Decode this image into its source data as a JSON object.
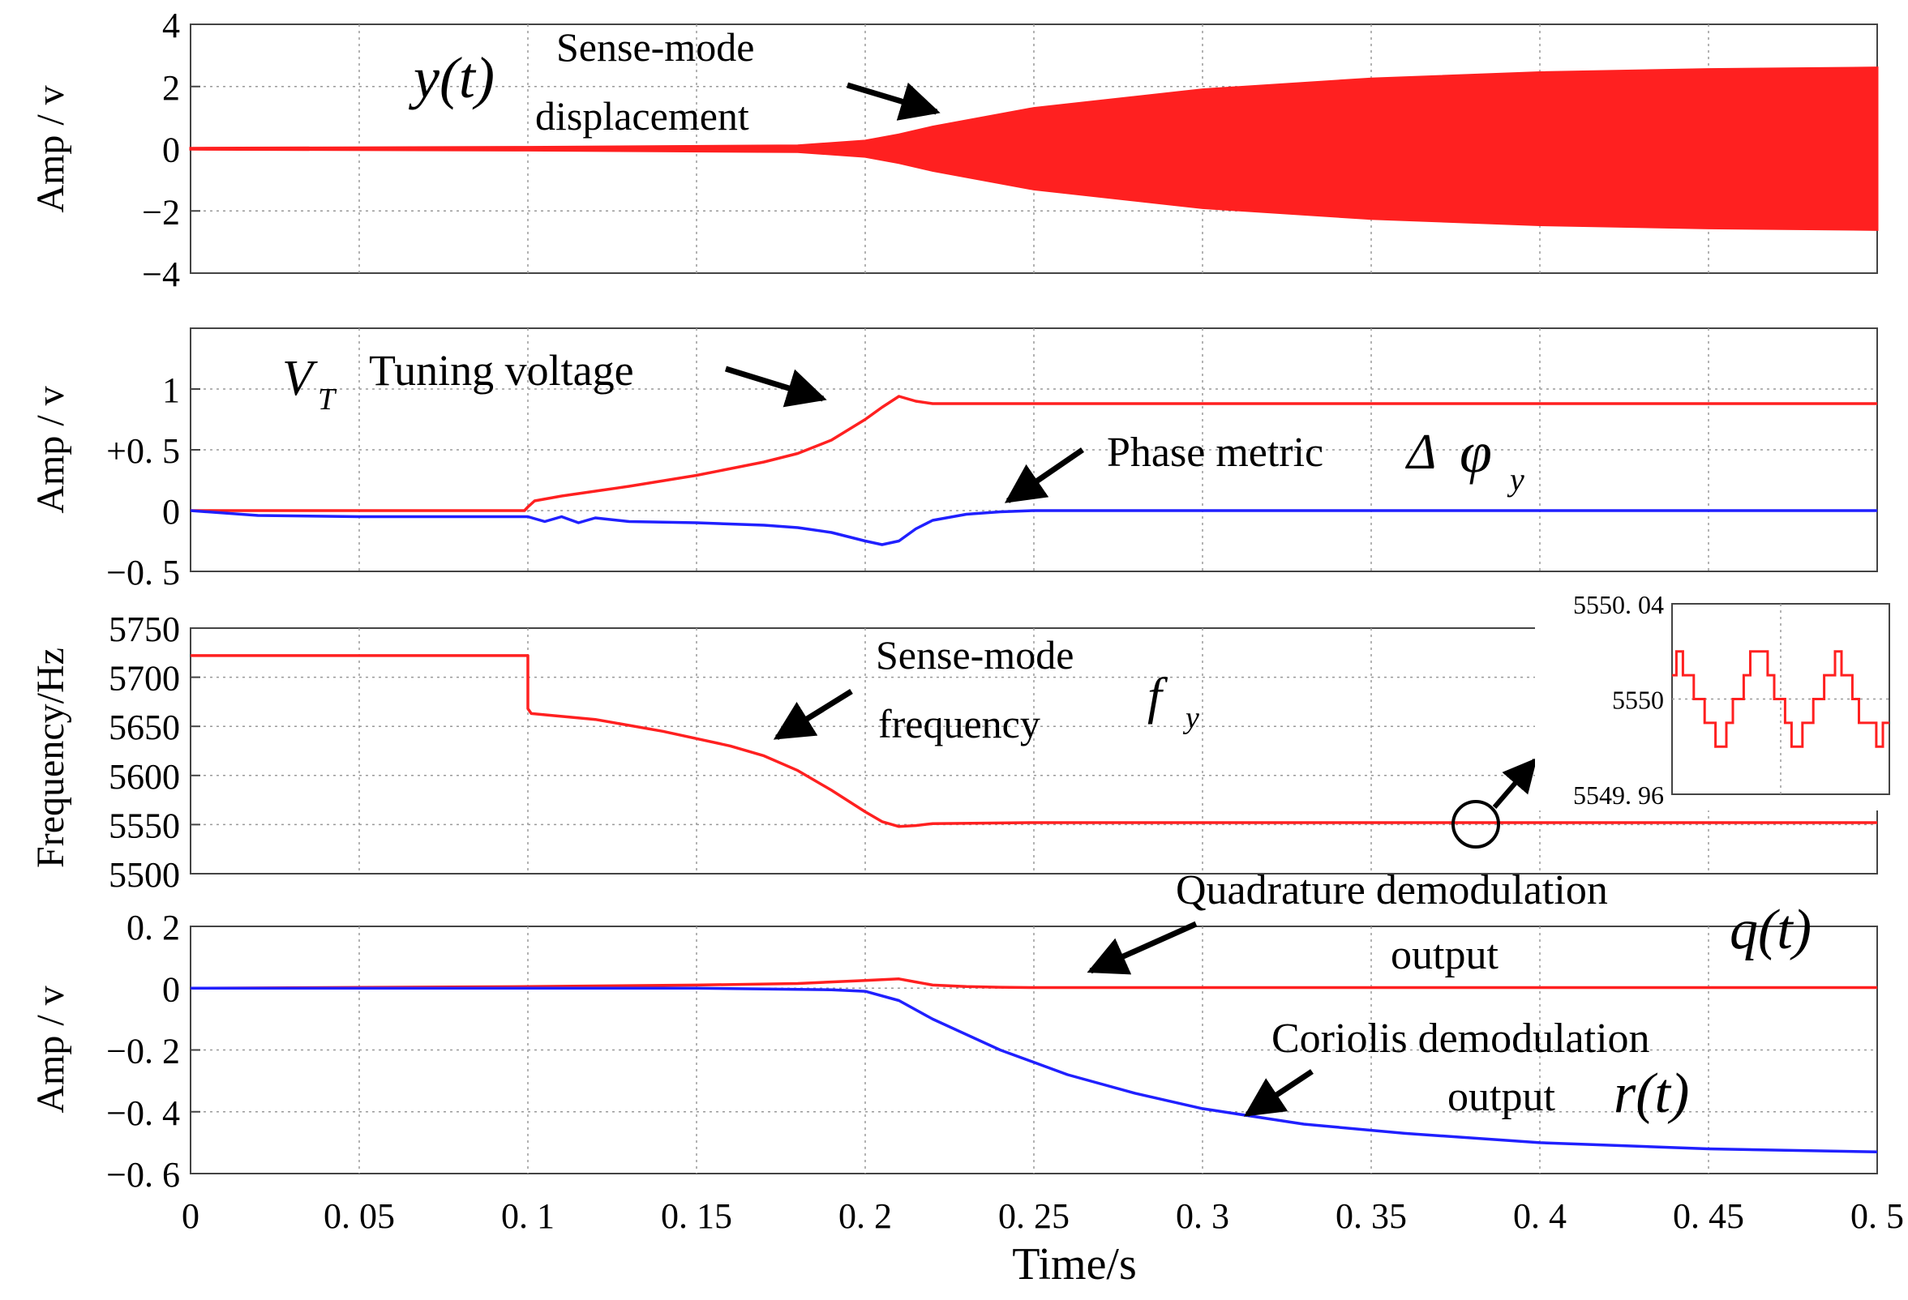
{
  "chart_data": [
    {
      "type": "line",
      "ylabel": "Amp / v",
      "ylim": [
        -4,
        4
      ],
      "yticks": [
        "4",
        "2",
        "0",
        "−2",
        "−4"
      ],
      "xlim": [
        0,
        0.5
      ],
      "series": [
        {
          "name": "Sense-mode displacement",
          "color": "#ff2020",
          "kind": "envelope",
          "x": [
            0,
            0.1,
            0.18,
            0.2,
            0.21,
            0.22,
            0.25,
            0.3,
            0.35,
            0.4,
            0.45,
            0.5
          ],
          "upper": [
            0.02,
            0.05,
            0.1,
            0.25,
            0.45,
            0.7,
            1.3,
            1.9,
            2.25,
            2.45,
            2.55,
            2.6
          ],
          "lower": [
            -0.02,
            -0.05,
            -0.1,
            -0.25,
            -0.45,
            -0.7,
            -1.3,
            -1.9,
            -2.25,
            -2.45,
            -2.55,
            -2.6
          ]
        }
      ],
      "annotations": {
        "symbol": "y(t)",
        "label_line1": "Sense-mode",
        "label_line2": "displacement"
      }
    },
    {
      "type": "line",
      "ylabel": "Amp / v",
      "ylim": [
        -0.5,
        1.5
      ],
      "yticks": [
        "1",
        "+0. 5",
        "0",
        "−0. 5"
      ],
      "xlim": [
        0,
        0.5
      ],
      "series": [
        {
          "name": "Tuning voltage",
          "color": "#ff2020",
          "x": [
            0,
            0.099,
            0.1,
            0.102,
            0.11,
            0.12,
            0.13,
            0.15,
            0.17,
            0.18,
            0.19,
            0.2,
            0.205,
            0.21,
            0.215,
            0.22,
            0.5
          ],
          "y": [
            0,
            0,
            0.03,
            0.08,
            0.12,
            0.16,
            0.2,
            0.29,
            0.4,
            0.47,
            0.58,
            0.75,
            0.85,
            0.94,
            0.9,
            0.88,
            0.88
          ]
        },
        {
          "name": "Phase metric",
          "color": "#2020ff",
          "x": [
            0,
            0.01,
            0.02,
            0.05,
            0.1,
            0.105,
            0.11,
            0.115,
            0.12,
            0.13,
            0.15,
            0.17,
            0.18,
            0.19,
            0.2,
            0.205,
            0.21,
            0.215,
            0.22,
            0.23,
            0.24,
            0.25,
            0.5
          ],
          "y": [
            0,
            -0.02,
            -0.04,
            -0.05,
            -0.05,
            -0.09,
            -0.05,
            -0.1,
            -0.06,
            -0.09,
            -0.1,
            -0.12,
            -0.14,
            -0.18,
            -0.25,
            -0.28,
            -0.25,
            -0.15,
            -0.08,
            -0.03,
            -0.01,
            0,
            0
          ]
        }
      ],
      "annotations": {
        "vt_symbol": "V",
        "vt_sub": "T",
        "vt_label": "Tuning voltage",
        "phase_label": "Phase  metric",
        "phase_delta": "Δ",
        "phase_phi": "φ",
        "phase_sub": "y"
      }
    },
    {
      "type": "line",
      "ylabel": "Frequency/Hz",
      "ylim": [
        5500,
        5750
      ],
      "yticks": [
        "5750",
        "5700",
        "5650",
        "5600",
        "5550",
        "5500"
      ],
      "xlim": [
        0,
        0.5
      ],
      "series": [
        {
          "name": "Sense-mode frequency",
          "color": "#ff2020",
          "x": [
            0,
            0.1,
            0.1,
            0.101,
            0.12,
            0.14,
            0.16,
            0.17,
            0.18,
            0.19,
            0.2,
            0.205,
            0.21,
            0.215,
            0.22,
            0.25,
            0.5
          ],
          "y": [
            5722,
            5722,
            5668,
            5663,
            5657,
            5645,
            5630,
            5620,
            5605,
            5585,
            5563,
            5553,
            5548,
            5549,
            5551,
            5552,
            5552
          ]
        }
      ],
      "annotations": {
        "label_line1": "Sense-mode",
        "label_line2": "frequency",
        "symbol": "f",
        "symbol_sub": "y"
      },
      "inset": {
        "yticks": [
          "5550. 04",
          "5550",
          "5549. 96"
        ],
        "ylim": [
          5549.96,
          5550.04
        ],
        "x": [
          0,
          0.02,
          0.02,
          0.05,
          0.05,
          0.1,
          0.1,
          0.15,
          0.15,
          0.2,
          0.2,
          0.25,
          0.25,
          0.28,
          0.28,
          0.33,
          0.33,
          0.36,
          0.36,
          0.44,
          0.44,
          0.47,
          0.47,
          0.52,
          0.52,
          0.55,
          0.55,
          0.6,
          0.6,
          0.65,
          0.65,
          0.7,
          0.7,
          0.75,
          0.75,
          0.78,
          0.78,
          0.83,
          0.83,
          0.86,
          0.86,
          0.94,
          0.94,
          0.97,
          0.97,
          1.0
        ],
        "y": [
          5550.01,
          5550.01,
          5550.02,
          5550.02,
          5550.01,
          5550.01,
          5550.0,
          5550.0,
          5549.99,
          5549.99,
          5549.98,
          5549.98,
          5549.99,
          5549.99,
          5550.0,
          5550.0,
          5550.01,
          5550.01,
          5550.02,
          5550.02,
          5550.01,
          5550.01,
          5550.0,
          5550.0,
          5549.99,
          5549.99,
          5549.98,
          5549.98,
          5549.99,
          5549.99,
          5550.0,
          5550.0,
          5550.01,
          5550.01,
          5550.02,
          5550.02,
          5550.01,
          5550.01,
          5550.0,
          5550.0,
          5549.99,
          5549.99,
          5549.98,
          5549.98,
          5549.99,
          5549.99
        ]
      }
    },
    {
      "type": "line",
      "ylabel": "Amp / v",
      "ylim": [
        -0.6,
        0.2
      ],
      "yticks": [
        "0. 2",
        "0",
        "−0. 2",
        "−0. 4",
        "−0. 6"
      ],
      "xlim": [
        0,
        0.5
      ],
      "xlabel": "Time/s",
      "xticks": [
        "0",
        "0. 05",
        "0. 1",
        "0. 15",
        "0. 2",
        "0. 25",
        "0. 3",
        "0. 35",
        "0. 4",
        "0. 45",
        "0. 5"
      ],
      "series": [
        {
          "name": "Quadrature demodulation output",
          "color": "#ff2020",
          "x": [
            0,
            0.1,
            0.15,
            0.18,
            0.2,
            0.21,
            0.215,
            0.22,
            0.23,
            0.24,
            0.25,
            0.5
          ],
          "y": [
            0,
            0.005,
            0.01,
            0.015,
            0.025,
            0.03,
            0.02,
            0.01,
            0.005,
            0.003,
            0.002,
            0.002
          ]
        },
        {
          "name": "Coriolis demodulation output",
          "color": "#2020ff",
          "x": [
            0,
            0.05,
            0.1,
            0.15,
            0.19,
            0.2,
            0.21,
            0.22,
            0.24,
            0.26,
            0.28,
            0.3,
            0.33,
            0.36,
            0.4,
            0.45,
            0.5
          ],
          "y": [
            0,
            0,
            0,
            0,
            -0.005,
            -0.01,
            -0.04,
            -0.1,
            -0.2,
            -0.28,
            -0.34,
            -0.39,
            -0.44,
            -0.47,
            -0.5,
            -0.52,
            -0.53
          ]
        }
      ],
      "annotations": {
        "q_label_line1": "Quadrature demodulation",
        "q_label_line2": "output",
        "q_symbol": "q(t)",
        "r_label_line1": "Coriolis demodulation",
        "r_label_line2": "output",
        "r_symbol": "r(t)"
      }
    }
  ]
}
